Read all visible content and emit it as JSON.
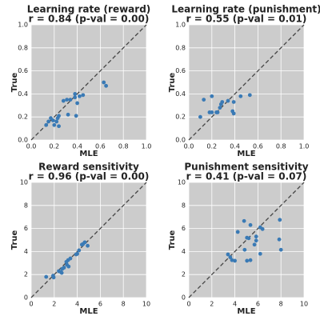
{
  "chart_data": [
    {
      "type": "scatter",
      "title": "Learning rate (reward)",
      "subtitle": "r = 0.84 (p-val = 0.00)",
      "x_label": "MLE",
      "y_label": "True",
      "color": "#3a7ab5",
      "grid": true,
      "identity_line": true,
      "xlim": [
        0,
        1
      ],
      "ylim": [
        0,
        1
      ],
      "xticks": [
        {
          "value": 0,
          "label": "0.0"
        },
        0.2,
        0.4,
        0.6,
        0.8,
        {
          "value": 1,
          "label": "1.0"
        }
      ],
      "yticks": [
        {
          "value": 0,
          "label": "0.0"
        },
        0.2,
        0.4,
        0.6,
        0.8,
        {
          "value": 1,
          "label": "1.0"
        }
      ],
      "x": [
        0.13,
        0.15,
        0.17,
        0.19,
        0.2,
        0.22,
        0.23,
        0.24,
        0.24,
        0.28,
        0.31,
        0.32,
        0.34,
        0.38,
        0.38,
        0.39,
        0.4,
        0.42,
        0.45,
        0.63,
        0.65
      ],
      "y": [
        0.13,
        0.16,
        0.19,
        0.17,
        0.13,
        0.16,
        0.19,
        0.12,
        0.21,
        0.34,
        0.35,
        0.22,
        0.35,
        0.4,
        0.37,
        0.21,
        0.32,
        0.38,
        0.39,
        0.5,
        0.47
      ]
    },
    {
      "type": "scatter",
      "title": "Learning rate (punishment)",
      "subtitle": "r = 0.55 (p-val = 0.01)",
      "x_label": "MLE",
      "y_label": "True",
      "color": "#3a7ab5",
      "grid": true,
      "identity_line": true,
      "xlim": [
        0,
        1
      ],
      "ylim": [
        0,
        1
      ],
      "xticks": [
        {
          "value": 0,
          "label": "0.0"
        },
        0.2,
        0.4,
        0.6,
        0.8,
        {
          "value": 1,
          "label": "1.0"
        }
      ],
      "yticks": [
        {
          "value": 0,
          "label": "0.0"
        },
        0.2,
        0.4,
        0.6,
        0.8,
        {
          "value": 1,
          "label": "1.0"
        }
      ],
      "x": [
        0.1,
        0.13,
        0.18,
        0.2,
        0.2,
        0.24,
        0.25,
        0.27,
        0.28,
        0.29,
        0.34,
        0.38,
        0.39,
        0.39,
        0.45,
        0.53
      ],
      "y": [
        0.2,
        0.35,
        0.24,
        0.24,
        0.38,
        0.24,
        0.24,
        0.28,
        0.31,
        0.33,
        0.34,
        0.25,
        0.23,
        0.33,
        0.38,
        0.39
      ]
    },
    {
      "type": "scatter",
      "title": "Reward sensitivity",
      "subtitle": "r = 0.96 (p-val = 0.00)",
      "x_label": "MLE",
      "y_label": "True",
      "color": "#3a7ab5",
      "grid": true,
      "identity_line": true,
      "xlim": [
        0,
        10
      ],
      "ylim": [
        0,
        10
      ],
      "xticks": [
        0,
        2,
        4,
        6,
        8,
        10
      ],
      "yticks": [
        0,
        2,
        4,
        6,
        8,
        10
      ],
      "x": [
        1.3,
        1.9,
        1.95,
        2.4,
        2.6,
        2.65,
        2.7,
        2.85,
        3.05,
        3.1,
        3.2,
        3.25,
        3.4,
        3.9,
        4.0,
        4.15,
        4.4,
        4.5,
        4.65,
        4.9
      ],
      "y": [
        1.8,
        1.9,
        1.75,
        2.3,
        2.2,
        2.15,
        2.5,
        2.6,
        3.1,
        2.85,
        3.25,
        2.7,
        3.4,
        3.75,
        3.8,
        4.1,
        4.6,
        4.65,
        4.8,
        4.5
      ]
    },
    {
      "type": "scatter",
      "title": "Punishment sensitivity",
      "subtitle": "r = 0.41 (p-val = 0.07)",
      "x_label": "MLE",
      "y_label": "True",
      "color": "#3a7ab5",
      "grid": true,
      "identity_line": true,
      "xlim": [
        0,
        10
      ],
      "ylim": [
        0,
        10
      ],
      "xticks": [
        0,
        2,
        4,
        6,
        8,
        10
      ],
      "yticks": [
        0,
        2,
        4,
        6,
        8,
        10
      ],
      "x": [
        3.4,
        3.6,
        3.75,
        4.0,
        4.25,
        4.8,
        4.85,
        5.05,
        5.2,
        5.05,
        5.35,
        5.35,
        5.7,
        5.85,
        5.85,
        6.2,
        6.4,
        6.2,
        7.85,
        7.9,
        8.0
      ],
      "y": [
        3.75,
        3.5,
        3.25,
        3.2,
        5.7,
        6.65,
        4.15,
        5.2,
        5.15,
        3.2,
        6.3,
        3.25,
        4.6,
        5.3,
        4.95,
        6.1,
        5.95,
        3.8,
        5.05,
        6.75,
        4.15
      ]
    }
  ]
}
